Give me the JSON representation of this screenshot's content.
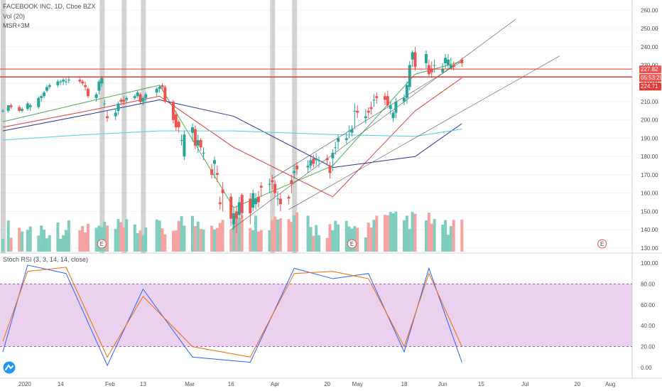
{
  "header": {
    "title": "FACEBOOK INC, 1D, Cboe BZX",
    "indicators": [
      "Vol (20)",
      "MSR+3M"
    ],
    "oscillator": "Stoch RSI (3, 3, 14, 14, close)"
  },
  "price_tags": {
    "last": "227.82",
    "countdown": "05:53:29",
    "level": "224.71"
  },
  "time_labels": [
    "2020",
    "14",
    "Feb",
    "13",
    "Mar",
    "16",
    "Apr",
    "20",
    "May",
    "18",
    "Jun",
    "15",
    "Jul",
    "20",
    "Aug"
  ],
  "price_axis_labels": [
    "260.00",
    "250.00",
    "240.00",
    "230.00",
    "220.00",
    "210.00",
    "200.00",
    "190.00",
    "180.00",
    "170.00",
    "160.00",
    "150.00",
    "140.00",
    "130.00"
  ],
  "rsi_axis_labels": [
    "100.00",
    "80.00",
    "60.00",
    "40.00",
    "20.00",
    "0.00"
  ],
  "earnings_marker": "E",
  "colors": {
    "up": "#26a69a",
    "down": "#ef5350",
    "vol_up": "#7fcdbf",
    "vol_down": "#f5a3a1",
    "ema_short": "#4caf50",
    "ema_mid": "#e53935",
    "ema_long": "#283593",
    "ema_xlong": "#4dd0e1",
    "channel": "#555555",
    "hline": "#e53935",
    "rsi_k": "#2962ff",
    "rsi_d": "#ef6c00",
    "rsi_band": "#e1bee7",
    "band_border": "#9c27b0"
  },
  "chart_data": [
    {
      "type": "candlestick",
      "title": "FACEBOOK INC, 1D, Cboe BZX",
      "ylim": [
        128,
        264
      ],
      "x": [
        "2019-12-24",
        "2019-12-26",
        "2019-12-27",
        "2019-12-30",
        "2019-12-31",
        "2020-01-02",
        "2020-01-03",
        "2020-01-06",
        "2020-01-07",
        "2020-01-08",
        "2020-01-09",
        "2020-01-10",
        "2020-01-13",
        "2020-01-14",
        "2020-01-15",
        "2020-01-16",
        "2020-01-17",
        "2020-01-21",
        "2020-01-22",
        "2020-01-23",
        "2020-01-24",
        "2020-01-27",
        "2020-01-28",
        "2020-01-29",
        "2020-01-30",
        "2020-01-31",
        "2020-02-03",
        "2020-02-04",
        "2020-02-05",
        "2020-02-06",
        "2020-02-07",
        "2020-02-10",
        "2020-02-11",
        "2020-02-12",
        "2020-02-13",
        "2020-02-14",
        "2020-02-18",
        "2020-02-19",
        "2020-02-20",
        "2020-02-21",
        "2020-02-24",
        "2020-02-25",
        "2020-02-26",
        "2020-02-27",
        "2020-02-28",
        "2020-03-02",
        "2020-03-03",
        "2020-03-04",
        "2020-03-05",
        "2020-03-06",
        "2020-03-09",
        "2020-03-10",
        "2020-03-11",
        "2020-03-12",
        "2020-03-13",
        "2020-03-16",
        "2020-03-17",
        "2020-03-18",
        "2020-03-19",
        "2020-03-20",
        "2020-03-23",
        "2020-03-24",
        "2020-03-25",
        "2020-03-26",
        "2020-03-27",
        "2020-03-30",
        "2020-03-31",
        "2020-04-01",
        "2020-04-02",
        "2020-04-03",
        "2020-04-06",
        "2020-04-07",
        "2020-04-08",
        "2020-04-09",
        "2020-04-13",
        "2020-04-14",
        "2020-04-15",
        "2020-04-16",
        "2020-04-17",
        "2020-04-20",
        "2020-04-21",
        "2020-04-22",
        "2020-04-23",
        "2020-04-24",
        "2020-04-27",
        "2020-04-28",
        "2020-04-29",
        "2020-04-30",
        "2020-05-01",
        "2020-05-04",
        "2020-05-05",
        "2020-05-06",
        "2020-05-07",
        "2020-05-08",
        "2020-05-11",
        "2020-05-12",
        "2020-05-13",
        "2020-05-14",
        "2020-05-15",
        "2020-05-18",
        "2020-05-19",
        "2020-05-20",
        "2020-05-21",
        "2020-05-22",
        "2020-05-26",
        "2020-05-27",
        "2020-05-28",
        "2020-05-29",
        "2020-06-01",
        "2020-06-02",
        "2020-06-03",
        "2020-06-04",
        "2020-06-05",
        "2020-06-08"
      ],
      "open": [
        205,
        205,
        208,
        207,
        205,
        206,
        207,
        207,
        212,
        213,
        216,
        218,
        219,
        221,
        221,
        221,
        222,
        222,
        221,
        219,
        217,
        212,
        216,
        220,
        209,
        202,
        202,
        205,
        211,
        211,
        211,
        212,
        213,
        214,
        210,
        212,
        215,
        217,
        219,
        218,
        210,
        203,
        199,
        189,
        180,
        193,
        195,
        186,
        189,
        182,
        173,
        176,
        171,
        155,
        162,
        158,
        143,
        150,
        148,
        159,
        157,
        152,
        154,
        158,
        164,
        165,
        167,
        165,
        157,
        157,
        158,
        167,
        171,
        175,
        174,
        175,
        179,
        178,
        178,
        179,
        175,
        179,
        185,
        188,
        189,
        194,
        193,
        205,
        205,
        201,
        205,
        207,
        211,
        213,
        213,
        213,
        206,
        201,
        204,
        210,
        212,
        218,
        233,
        237,
        231,
        230,
        228,
        230,
        226,
        231,
        230,
        228,
        230,
        233
      ],
      "close": [
        205,
        208,
        207,
        205,
        206,
        209,
        208,
        212,
        213,
        215,
        218,
        219,
        221,
        221,
        222,
        221,
        222,
        221,
        220,
        218,
        213,
        214,
        221,
        223,
        209,
        201,
        204,
        209,
        210,
        210,
        212,
        213,
        215,
        210,
        212,
        214,
        217,
        218,
        218,
        210,
        200,
        196,
        196,
        189,
        192,
        196,
        186,
        189,
        185,
        182,
        170,
        178,
        170,
        154,
        160,
        146,
        149,
        146,
        155,
        149,
        149,
        160,
        157,
        155,
        163,
        165,
        166,
        160,
        157,
        154,
        157,
        165,
        172,
        173,
        175,
        178,
        176,
        179,
        178,
        178,
        171,
        182,
        185,
        190,
        190,
        194,
        195,
        205,
        204,
        202,
        204,
        206,
        211,
        212,
        211,
        208,
        208,
        204,
        210,
        212,
        219,
        230,
        237,
        229,
        236,
        225,
        226,
        230,
        228,
        234,
        233,
        230,
        229,
        231
      ],
      "high": [
        206,
        208,
        209,
        208,
        207,
        210,
        209,
        213,
        214,
        216,
        219,
        220,
        222,
        222,
        223,
        223,
        224,
        223,
        222,
        221,
        218,
        215,
        222,
        224,
        211,
        205,
        206,
        210,
        212,
        213,
        213,
        214,
        216,
        215,
        213,
        215,
        218,
        219,
        220,
        219,
        211,
        205,
        200,
        192,
        194,
        198,
        197,
        192,
        190,
        185,
        176,
        180,
        175,
        158,
        166,
        160,
        152,
        153,
        158,
        160,
        160,
        162,
        160,
        161,
        166,
        168,
        170,
        167,
        161,
        160,
        159,
        170,
        175,
        177,
        178,
        180,
        181,
        182,
        180,
        181,
        177,
        184,
        188,
        192,
        193,
        197,
        197,
        209,
        208,
        206,
        207,
        210,
        214,
        215,
        215,
        216,
        210,
        205,
        212,
        214,
        221,
        232,
        238,
        240,
        238,
        233,
        232,
        233,
        231,
        236,
        236,
        234,
        232,
        234
      ],
      "low": [
        204,
        204,
        206,
        204,
        204,
        205,
        205,
        206,
        210,
        212,
        215,
        217,
        218,
        219,
        219,
        219,
        220,
        220,
        219,
        216,
        212,
        210,
        214,
        218,
        207,
        199,
        200,
        203,
        208,
        208,
        209,
        211,
        212,
        209,
        208,
        210,
        213,
        215,
        216,
        209,
        198,
        194,
        193,
        186,
        178,
        188,
        184,
        182,
        183,
        178,
        168,
        168,
        166,
        151,
        150,
        142,
        140,
        138,
        146,
        146,
        143,
        150,
        151,
        152,
        158,
        160,
        162,
        158,
        153,
        150,
        154,
        160,
        168,
        170,
        171,
        173,
        174,
        175,
        174,
        175,
        168,
        172,
        181,
        184,
        187,
        190,
        191,
        195,
        201,
        198,
        201,
        203,
        207,
        209,
        208,
        207,
        203,
        199,
        201,
        208,
        209,
        216,
        229,
        227,
        228,
        224,
        223,
        226,
        225,
        228,
        228,
        228,
        227,
        229
      ]
    },
    {
      "type": "line",
      "title": "MSR+3M",
      "series": [
        {
          "x": [
            "2019-12-24",
            "2020-01-24",
            "2020-02-19",
            "2020-03-17",
            "2020-04-22",
            "2020-05-22",
            "2020-06-08"
          ],
          "values": [
            199,
            210,
            219,
            152,
            175,
            225,
            232
          ]
        },
        {
          "x": [
            "2019-12-24",
            "2020-01-24",
            "2020-02-19",
            "2020-03-17",
            "2020-04-22",
            "2020-05-22",
            "2020-06-08"
          ],
          "values": [
            196,
            205,
            213,
            185,
            158,
            205,
            223
          ]
        },
        {
          "x": [
            "2019-12-24",
            "2020-01-24",
            "2020-02-19",
            "2020-03-17",
            "2020-04-22",
            "2020-05-22",
            "2020-06-08"
          ],
          "values": [
            194,
            203,
            211,
            202,
            174,
            180,
            198
          ]
        },
        {
          "x": [
            "2019-12-24",
            "2020-01-24",
            "2020-02-19",
            "2020-03-17",
            "2020-04-22",
            "2020-05-22",
            "2020-06-08"
          ],
          "values": [
            189,
            192,
            194,
            194,
            192,
            191,
            195
          ]
        }
      ]
    },
    {
      "type": "bar",
      "title": "Vol (20)",
      "x": [
        "2019-12-24",
        "2020-01-29",
        "2020-02-28",
        "2020-03-16",
        "2020-04-30",
        "2020-05-19",
        "2020-05-29",
        "2020-06-08"
      ],
      "values": [
        12,
        30,
        45,
        38,
        62,
        42,
        44,
        21
      ]
    },
    {
      "type": "line",
      "title": "Stoch RSI (3, 3, 14, 14, close)",
      "ylim": [
        0,
        100
      ],
      "series": [
        {
          "x": [
            "2019-12-24",
            "2020-01-02",
            "2020-01-16",
            "2020-01-31",
            "2020-02-13",
            "2020-03-02",
            "2020-03-23",
            "2020-04-08",
            "2020-04-22",
            "2020-05-05",
            "2020-05-18",
            "2020-05-27",
            "2020-06-08"
          ],
          "values": [
            15,
            98,
            90,
            2,
            75,
            10,
            5,
            95,
            85,
            90,
            15,
            95,
            5
          ]
        },
        {
          "x": [
            "2019-12-24",
            "2020-01-02",
            "2020-01-16",
            "2020-01-31",
            "2020-02-13",
            "2020-03-02",
            "2020-03-23",
            "2020-04-08",
            "2020-04-22",
            "2020-05-05",
            "2020-05-18",
            "2020-05-27",
            "2020-06-08"
          ],
          "values": [
            25,
            92,
            96,
            10,
            68,
            20,
            10,
            90,
            92,
            85,
            20,
            90,
            20
          ]
        }
      ]
    }
  ]
}
